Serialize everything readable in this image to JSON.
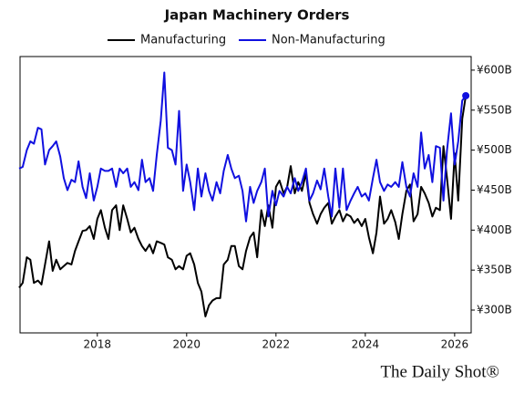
{
  "chart_data": {
    "type": "line",
    "title": "Japan Machinery Orders",
    "source": "The Daily Shot®",
    "x": [
      2016.25,
      2016.33,
      2016.42,
      2016.5,
      2016.58,
      2016.67,
      2016.75,
      2016.83,
      2016.92,
      2017.0,
      2017.08,
      2017.17,
      2017.25,
      2017.33,
      2017.42,
      2017.5,
      2017.58,
      2017.67,
      2017.75,
      2017.83,
      2017.92,
      2018.0,
      2018.08,
      2018.17,
      2018.25,
      2018.33,
      2018.42,
      2018.5,
      2018.58,
      2018.67,
      2018.75,
      2018.83,
      2018.92,
      2019.0,
      2019.08,
      2019.17,
      2019.25,
      2019.33,
      2019.42,
      2019.5,
      2019.58,
      2019.67,
      2019.75,
      2019.83,
      2019.92,
      2020.0,
      2020.08,
      2020.17,
      2020.25,
      2020.33,
      2020.42,
      2020.5,
      2020.58,
      2020.67,
      2020.75,
      2020.83,
      2020.92,
      2021.0,
      2021.08,
      2021.17,
      2021.25,
      2021.33,
      2021.42,
      2021.5,
      2021.58,
      2021.67,
      2021.75,
      2021.83,
      2021.92,
      2022.0,
      2022.08,
      2022.17,
      2022.25,
      2022.33,
      2022.42,
      2022.5,
      2022.58,
      2022.67,
      2022.75,
      2022.83,
      2022.92,
      2023.0,
      2023.08,
      2023.17,
      2023.25,
      2023.33,
      2023.42,
      2023.5,
      2023.58,
      2023.67,
      2023.75,
      2023.83,
      2023.92,
      2024.0,
      2024.08,
      2024.17,
      2024.25,
      2024.33,
      2024.42,
      2024.5,
      2024.58,
      2024.67,
      2024.75,
      2024.83,
      2024.92,
      2025.0,
      2025.08,
      2025.17,
      2025.25,
      2025.33,
      2025.42,
      2025.5,
      2025.58,
      2025.67,
      2025.75,
      2025.83,
      2025.92,
      2026.0,
      2026.08,
      2026.17,
      2026.25
    ],
    "series": [
      {
        "name": "Manufacturing",
        "color": "#000000",
        "values": [
          328,
          334,
          366,
          363,
          334,
          337,
          332,
          357,
          386,
          349,
          363,
          351,
          355,
          359,
          357,
          374,
          386,
          399,
          400,
          405,
          389,
          414,
          425,
          403,
          389,
          425,
          431,
          400,
          431,
          414,
          397,
          403,
          389,
          380,
          374,
          382,
          371,
          386,
          384,
          382,
          366,
          363,
          351,
          355,
          351,
          368,
          371,
          357,
          334,
          323,
          292,
          306,
          312,
          315,
          315,
          357,
          363,
          380,
          380,
          355,
          351,
          374,
          391,
          397,
          366,
          425,
          405,
          431,
          403,
          454,
          462,
          446,
          454,
          480,
          446,
          460,
          449,
          471,
          434,
          420,
          408,
          420,
          428,
          434,
          408,
          417,
          425,
          411,
          420,
          417,
          409,
          414,
          405,
          414,
          391,
          371,
          397,
          442,
          408,
          414,
          425,
          410,
          389,
          420,
          449,
          457,
          411,
          420,
          454,
          446,
          434,
          417,
          428,
          425,
          505,
          465,
          414,
          496,
          437,
          539,
          568
        ]
      },
      {
        "name": "Non-Manufacturing",
        "color": "#1010e0",
        "end_marker": true,
        "values": [
          477,
          479,
          500,
          511,
          508,
          528,
          526,
          482,
          500,
          505,
          511,
          492,
          465,
          450,
          463,
          460,
          486,
          454,
          440,
          471,
          437,
          454,
          477,
          474,
          474,
          477,
          454,
          477,
          471,
          477,
          454,
          460,
          450,
          488,
          460,
          465,
          449,
          494,
          537,
          597,
          503,
          500,
          482,
          549,
          449,
          482,
          460,
          425,
          477,
          442,
          471,
          449,
          437,
          460,
          446,
          474,
          494,
          477,
          465,
          468,
          449,
          411,
          454,
          434,
          449,
          460,
          477,
          417,
          449,
          431,
          449,
          442,
          454,
          446,
          465,
          449,
          460,
          477,
          437,
          446,
          462,
          451,
          477,
          442,
          417,
          477,
          428,
          477,
          425,
          437,
          446,
          454,
          442,
          446,
          437,
          465,
          488,
          460,
          449,
          457,
          454,
          460,
          454,
          485,
          454,
          442,
          471,
          454,
          522,
          477,
          494,
          460,
          505,
          503,
          437,
          500,
          546,
          482,
          511,
          562,
          568
        ]
      }
    ],
    "xlim": [
      2016.27,
      2026.37
    ],
    "xticks": [
      2018,
      2020,
      2022,
      2024,
      2026
    ],
    "ylim": [
      271.5,
      617
    ],
    "yticks": [
      {
        "value": 300,
        "label": "¥300B"
      },
      {
        "value": 350,
        "label": "¥350B"
      },
      {
        "value": 400,
        "label": "¥400B"
      },
      {
        "value": 450,
        "label": "¥450B"
      },
      {
        "value": 500,
        "label": "¥500B"
      },
      {
        "value": 550,
        "label": "¥550B"
      },
      {
        "value": 600,
        "label": "¥600B"
      }
    ]
  }
}
